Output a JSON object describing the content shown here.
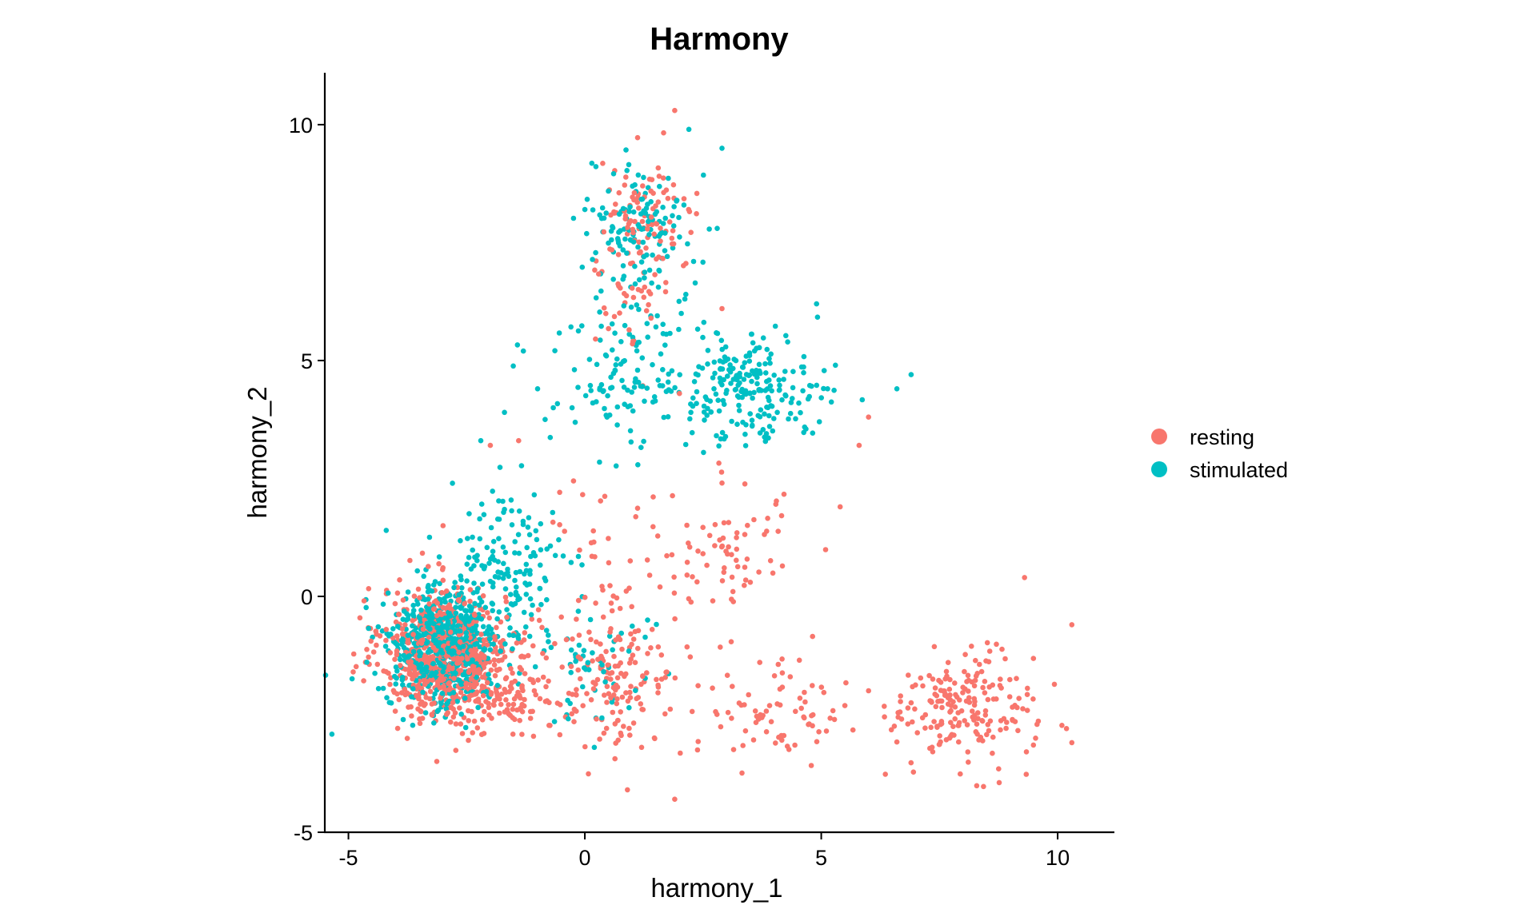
{
  "chart_data": {
    "type": "scatter",
    "title": "Harmony",
    "xlabel": "harmony_1",
    "ylabel": "harmony_2",
    "xlim": [
      -5.5,
      11.2
    ],
    "ylim": [
      -5.0,
      11.1
    ],
    "xticks": [
      -5,
      0,
      5,
      10
    ],
    "yticks": [
      -5,
      0,
      5,
      10
    ],
    "xtick_labels": [
      "-5",
      "0",
      "5",
      "10"
    ],
    "ytick_labels": [
      "-5",
      "0",
      "5",
      "10"
    ],
    "grid": false,
    "legend": {
      "position": "right",
      "title": ""
    },
    "series": [
      {
        "name": "resting",
        "color": "#F8766D",
        "clusters": [
          {
            "n": 620,
            "cx": -3.0,
            "cy": -1.2,
            "sx": 0.65,
            "sy": 0.7
          },
          {
            "n": 160,
            "cx": -1.8,
            "cy": -1.9,
            "sx": 0.6,
            "sy": 0.55
          },
          {
            "n": 150,
            "cx": 0.7,
            "cy": -1.8,
            "sx": 0.65,
            "sy": 0.7
          },
          {
            "n": 200,
            "cx": 8.0,
            "cy": -2.4,
            "sx": 0.75,
            "sy": 0.6
          },
          {
            "n": 80,
            "cx": 4.0,
            "cy": -2.3,
            "sx": 0.8,
            "sy": 0.6
          },
          {
            "n": 70,
            "cx": 3.0,
            "cy": 1.0,
            "sx": 0.8,
            "sy": 0.7
          },
          {
            "n": 90,
            "cx": 1.3,
            "cy": 8.0,
            "sx": 0.55,
            "sy": 0.55
          },
          {
            "n": 40,
            "cx": 1.0,
            "cy": 6.3,
            "sx": 0.4,
            "sy": 0.6
          },
          {
            "n": 40,
            "cx": 0.3,
            "cy": 0.8,
            "sx": 0.8,
            "sy": 1.0
          }
        ],
        "points": [
          [
            1.9,
            10.3
          ],
          [
            6.0,
            -2.0
          ],
          [
            9.3,
            0.4
          ],
          [
            10.3,
            -0.6
          ],
          [
            10.3,
            -3.1
          ],
          [
            -4.9,
            -1.6
          ],
          [
            -4.2,
            -0.7
          ],
          [
            1.9,
            -4.3
          ],
          [
            0.9,
            -4.1
          ],
          [
            -1.4,
            3.3
          ],
          [
            5.8,
            3.2
          ],
          [
            6.0,
            3.8
          ],
          [
            5.4,
            1.9
          ],
          [
            2.0,
            4.3
          ],
          [
            2.9,
            6.1
          ],
          [
            -2.0,
            3.2
          ],
          [
            1.2,
            -3.2
          ],
          [
            3.5,
            0.3
          ],
          [
            -3.0,
            1.5
          ],
          [
            6.7,
            -2.6
          ]
        ]
      },
      {
        "name": "stimulated",
        "color": "#00BFC4",
        "clusters": [
          {
            "n": 600,
            "cx": -3.0,
            "cy": -1.1,
            "sx": 0.6,
            "sy": 0.65
          },
          {
            "n": 160,
            "cx": -1.7,
            "cy": 0.5,
            "sx": 0.7,
            "sy": 0.8
          },
          {
            "n": 220,
            "cx": 3.5,
            "cy": 4.4,
            "sx": 0.75,
            "sy": 0.55
          },
          {
            "n": 110,
            "cx": 1.2,
            "cy": 8.0,
            "sx": 0.55,
            "sy": 0.6
          },
          {
            "n": 120,
            "cx": 0.8,
            "cy": 4.8,
            "sx": 0.7,
            "sy": 0.9
          },
          {
            "n": 50,
            "cx": 0.2,
            "cy": -1.3,
            "sx": 0.6,
            "sy": 0.7
          },
          {
            "n": 25,
            "cx": 1.0,
            "cy": 6.5,
            "sx": 0.5,
            "sy": 0.8
          }
        ],
        "points": [
          [
            2.9,
            9.5
          ],
          [
            2.2,
            9.9
          ],
          [
            6.9,
            4.7
          ],
          [
            6.6,
            4.4
          ],
          [
            4.9,
            6.2
          ],
          [
            5.3,
            4.9
          ],
          [
            -1.3,
            5.2
          ],
          [
            -1.0,
            4.4
          ],
          [
            -4.2,
            1.4
          ],
          [
            -2.8,
            2.4
          ],
          [
            -1.7,
            3.9
          ],
          [
            2.8,
            7.8
          ],
          [
            2.3,
            7.1
          ],
          [
            0.0,
            8.2
          ],
          [
            -2.2,
            3.3
          ],
          [
            0.2,
            -3.2
          ]
        ]
      }
    ]
  }
}
